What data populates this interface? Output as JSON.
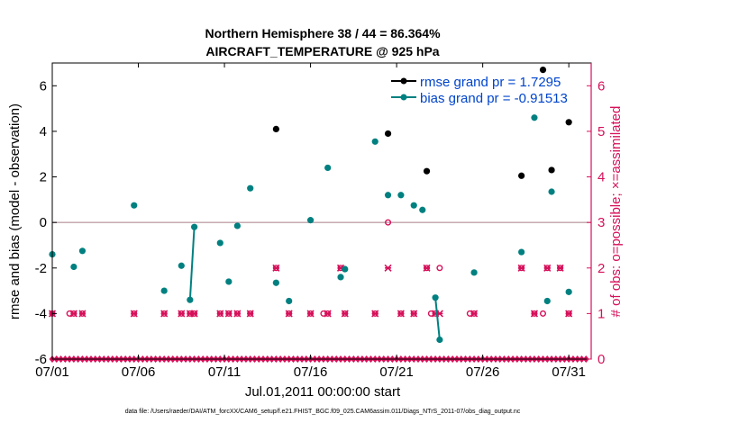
{
  "chart_data": {
    "type": "scatter",
    "title_line1": "Northern Hemisphere 38 / 44 = 86.364%",
    "title_line2": "AIRCRAFT_TEMPERATURE @ 925 hPa",
    "ylabel_left": "rmse and bias (model - observation)",
    "ylabel_right": "# of obs: o=possible; ×=assimilated",
    "xlabel": "Jul.01,2011 00:00:00 start",
    "footer": "data file: /Users/raeder/DAI/ATM_forcXX/CAM6_setup/f.e21.FHIST_BGC.f09_025.CAM6assim.011/Diags_NTrS_2011-07/obs_diag_output.nc",
    "x_range": [
      0,
      31.3
    ],
    "y_left_range": [
      -6,
      7
    ],
    "y_right_range": [
      0,
      6.5
    ],
    "y_left_ticks": [
      -6,
      -4,
      -2,
      0,
      2,
      4,
      6
    ],
    "y_right_ticks": [
      0,
      1,
      2,
      3,
      4,
      5,
      6
    ],
    "x_ticks": [
      {
        "x": 0,
        "label": "07/01"
      },
      {
        "x": 5,
        "label": "07/06"
      },
      {
        "x": 10,
        "label": "07/11"
      },
      {
        "x": 15,
        "label": "07/16"
      },
      {
        "x": 20,
        "label": "07/21"
      },
      {
        "x": 25,
        "label": "07/26"
      },
      {
        "x": 30,
        "label": "07/31"
      }
    ],
    "colors": {
      "rmse": "#000000",
      "bias": "#008080",
      "obs": "#d6105a",
      "zero_line": "#c0a0a8",
      "legend_text": "#0044cc"
    },
    "legend": {
      "placement": "top-right",
      "entries": [
        {
          "name": "rmse",
          "label": "rmse grand pr = 1.7295"
        },
        {
          "name": "bias",
          "label": "bias grand pr = -0.91513"
        }
      ]
    },
    "rmse": [
      {
        "x": 13.0,
        "y": 4.1
      },
      {
        "x": 19.5,
        "y": 3.9
      },
      {
        "x": 21.75,
        "y": 2.25
      },
      {
        "x": 27.25,
        "y": 2.05
      },
      {
        "x": 28.5,
        "y": 6.7
      },
      {
        "x": 29.0,
        "y": 2.3
      },
      {
        "x": 30.0,
        "y": 4.4
      }
    ],
    "bias": [
      [
        {
          "x": 0.0,
          "y": -1.4
        }
      ],
      [
        {
          "x": 1.25,
          "y": -1.95
        }
      ],
      [
        {
          "x": 1.75,
          "y": -1.25
        }
      ],
      [
        {
          "x": 4.75,
          "y": 0.75
        }
      ],
      [
        {
          "x": 6.5,
          "y": -3.0
        }
      ],
      [
        {
          "x": 7.5,
          "y": -1.9
        }
      ],
      [
        {
          "x": 8.0,
          "y": -3.4
        },
        {
          "x": 8.25,
          "y": -0.2
        }
      ],
      [
        {
          "x": 9.75,
          "y": -0.9
        }
      ],
      [
        {
          "x": 10.25,
          "y": -2.6
        }
      ],
      [
        {
          "x": 10.75,
          "y": -0.15
        }
      ],
      [
        {
          "x": 11.5,
          "y": 1.5
        }
      ],
      [
        {
          "x": 13.0,
          "y": -2.65
        }
      ],
      [
        {
          "x": 13.75,
          "y": -3.45
        }
      ],
      [
        {
          "x": 15.0,
          "y": 0.1
        }
      ],
      [
        {
          "x": 16.0,
          "y": 2.4
        }
      ],
      [
        {
          "x": 16.75,
          "y": -2.4
        }
      ],
      [
        {
          "x": 17.0,
          "y": -2.05
        }
      ],
      [
        {
          "x": 18.75,
          "y": 3.55
        }
      ],
      [
        {
          "x": 19.5,
          "y": 1.2
        }
      ],
      [
        {
          "x": 20.25,
          "y": 1.2
        }
      ],
      [
        {
          "x": 21.0,
          "y": 0.75
        }
      ],
      [
        {
          "x": 21.5,
          "y": 0.55
        }
      ],
      [
        {
          "x": 22.25,
          "y": -3.3
        },
        {
          "x": 22.5,
          "y": -5.15
        }
      ],
      [
        {
          "x": 24.5,
          "y": -2.2
        }
      ],
      [
        {
          "x": 27.25,
          "y": -1.3
        }
      ],
      [
        {
          "x": 28.0,
          "y": 4.6
        }
      ],
      [
        {
          "x": 28.75,
          "y": -3.45
        }
      ],
      [
        {
          "x": 29.0,
          "y": 1.35
        }
      ],
      [
        {
          "x": 30.0,
          "y": -3.05
        }
      ]
    ],
    "obs_possible": [
      {
        "x": 0.0,
        "y": 1
      },
      {
        "x": 1.0,
        "y": 1
      },
      {
        "x": 1.25,
        "y": 1
      },
      {
        "x": 1.75,
        "y": 1
      },
      {
        "x": 4.75,
        "y": 1
      },
      {
        "x": 6.5,
        "y": 1
      },
      {
        "x": 7.5,
        "y": 1
      },
      {
        "x": 8.0,
        "y": 1
      },
      {
        "x": 8.25,
        "y": 1
      },
      {
        "x": 9.75,
        "y": 1
      },
      {
        "x": 10.25,
        "y": 1
      },
      {
        "x": 10.75,
        "y": 1
      },
      {
        "x": 11.5,
        "y": 1
      },
      {
        "x": 13.0,
        "y": 2
      },
      {
        "x": 13.75,
        "y": 1
      },
      {
        "x": 15.0,
        "y": 1
      },
      {
        "x": 15.75,
        "y": 1
      },
      {
        "x": 16.0,
        "y": 1
      },
      {
        "x": 16.75,
        "y": 2
      },
      {
        "x": 17.0,
        "y": 1
      },
      {
        "x": 18.75,
        "y": 1
      },
      {
        "x": 19.5,
        "y": 3
      },
      {
        "x": 20.25,
        "y": 1
      },
      {
        "x": 21.0,
        "y": 1
      },
      {
        "x": 21.75,
        "y": 2
      },
      {
        "x": 22.0,
        "y": 1
      },
      {
        "x": 22.25,
        "y": 1
      },
      {
        "x": 22.5,
        "y": 2
      },
      {
        "x": 24.25,
        "y": 1
      },
      {
        "x": 24.5,
        "y": 1
      },
      {
        "x": 27.25,
        "y": 2
      },
      {
        "x": 28.0,
        "y": 1
      },
      {
        "x": 28.5,
        "y": 1
      },
      {
        "x": 28.75,
        "y": 2
      },
      {
        "x": 29.5,
        "y": 2
      },
      {
        "x": 30.0,
        "y": 1
      }
    ],
    "obs_assimilated": [
      {
        "x": 0.0,
        "y": 1
      },
      {
        "x": 1.25,
        "y": 1
      },
      {
        "x": 1.75,
        "y": 1
      },
      {
        "x": 4.75,
        "y": 1
      },
      {
        "x": 6.5,
        "y": 1
      },
      {
        "x": 7.5,
        "y": 1
      },
      {
        "x": 8.0,
        "y": 1
      },
      {
        "x": 8.25,
        "y": 1
      },
      {
        "x": 9.75,
        "y": 1
      },
      {
        "x": 10.25,
        "y": 1
      },
      {
        "x": 10.75,
        "y": 1
      },
      {
        "x": 11.5,
        "y": 1
      },
      {
        "x": 13.0,
        "y": 2
      },
      {
        "x": 13.75,
        "y": 1
      },
      {
        "x": 15.0,
        "y": 1
      },
      {
        "x": 16.0,
        "y": 1
      },
      {
        "x": 16.75,
        "y": 2
      },
      {
        "x": 17.0,
        "y": 1
      },
      {
        "x": 18.75,
        "y": 1
      },
      {
        "x": 19.5,
        "y": 2
      },
      {
        "x": 20.25,
        "y": 1
      },
      {
        "x": 21.0,
        "y": 1
      },
      {
        "x": 21.75,
        "y": 2
      },
      {
        "x": 22.25,
        "y": 1
      },
      {
        "x": 22.5,
        "y": 1
      },
      {
        "x": 24.5,
        "y": 1
      },
      {
        "x": 27.25,
        "y": 2
      },
      {
        "x": 28.0,
        "y": 1
      },
      {
        "x": 28.75,
        "y": 2
      },
      {
        "x": 29.5,
        "y": 2
      },
      {
        "x": 30.0,
        "y": 1
      }
    ]
  }
}
